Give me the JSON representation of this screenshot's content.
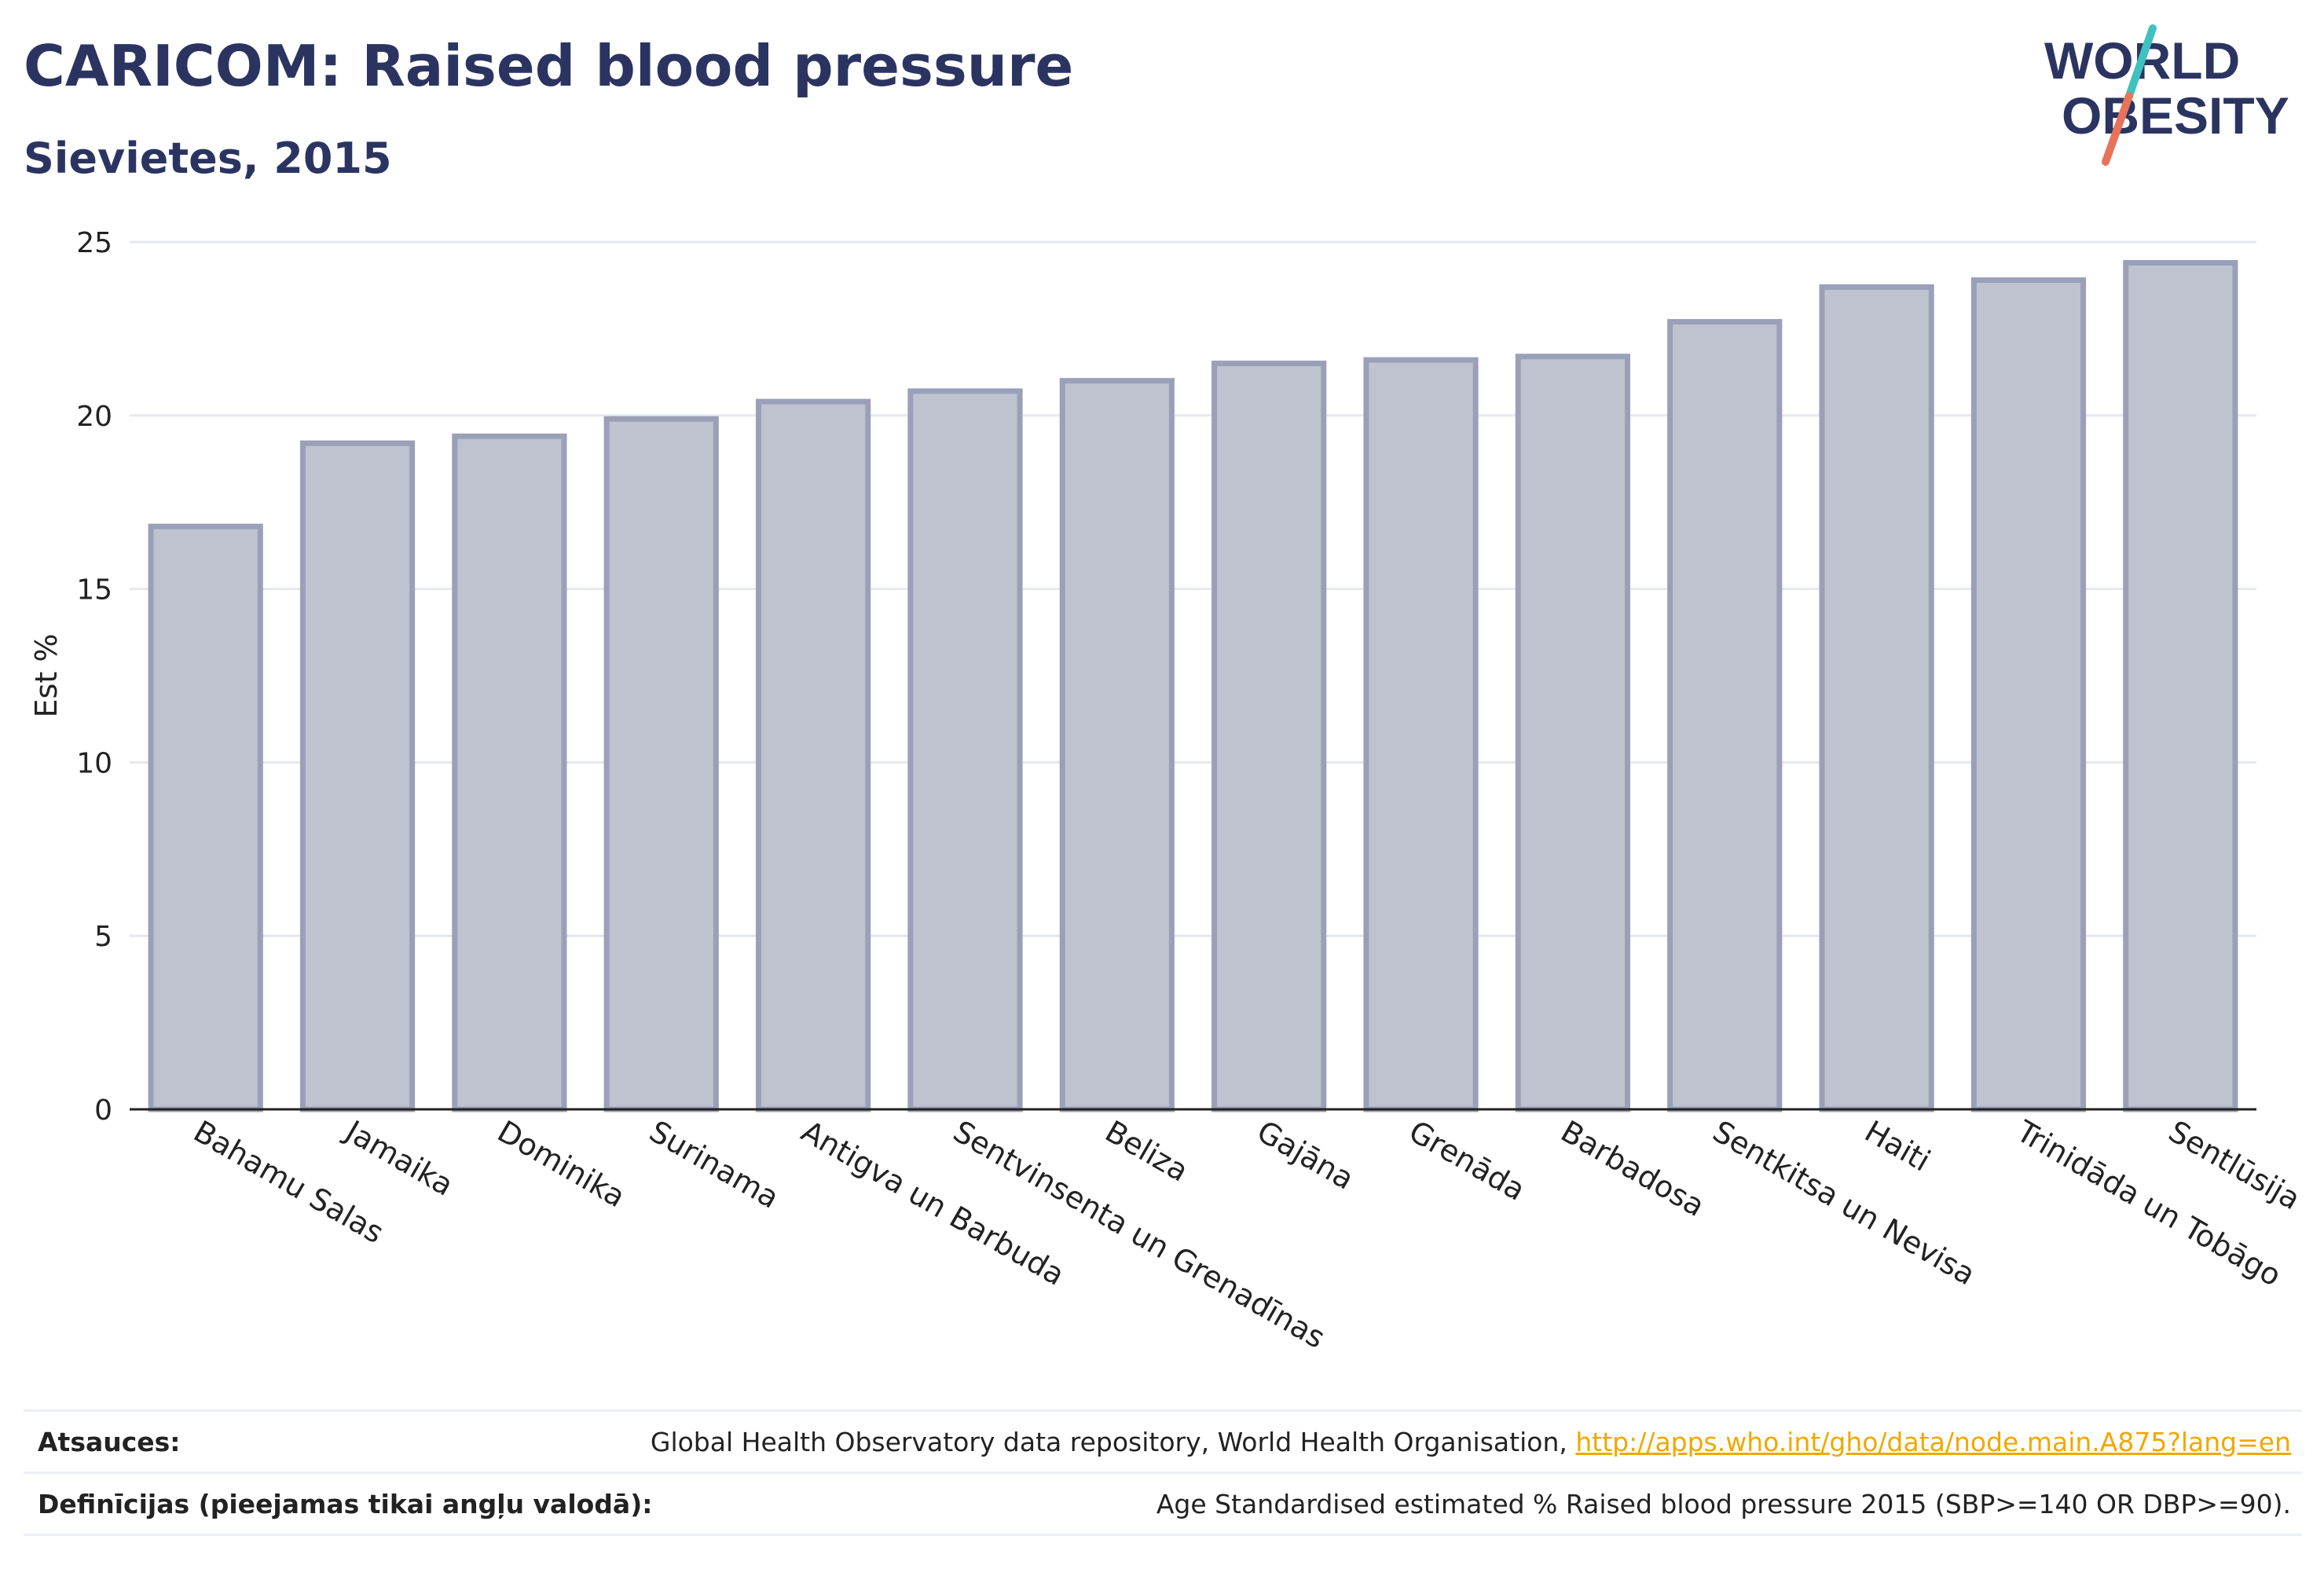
{
  "title": "CARICOM: Raised blood pressure",
  "subtitle": "Sievietes, 2015",
  "logo": {
    "line1": "WORLD",
    "line2": "OBESITY",
    "accent_colors": [
      "#3fc1c0",
      "#e8735a"
    ],
    "text_color": "#2b3461"
  },
  "colors": {
    "bar_fill": "#bfc3d0",
    "bar_stroke": "#9aa0b8",
    "gridline": "#e6e8ee",
    "axis": "#222222",
    "link": "#f0a800"
  },
  "chart_data": {
    "type": "bar",
    "categories": [
      "Bahamu Salas",
      "Jamaika",
      "Dominika",
      "Surinama",
      "Antigva un Barbuda",
      "Sentvinsenta un Grenadīnas",
      "Beliza",
      "Gajāna",
      "Grenāda",
      "Barbadosa",
      "Sentkitsa un Nevisa",
      "Haiti",
      "Trinidāda un Tobāgo",
      "Sentlūsija"
    ],
    "values": [
      16.8,
      19.2,
      19.4,
      19.9,
      20.4,
      20.7,
      21.0,
      21.5,
      21.6,
      21.7,
      22.7,
      23.7,
      23.9,
      24.4
    ],
    "ylabel": "Est %",
    "xlabel": "",
    "ylim": [
      0,
      25
    ],
    "yticks": [
      0,
      5,
      10,
      15,
      20,
      25
    ],
    "grid": true
  },
  "footer": {
    "sources_label": "Atsauces:",
    "sources_text": "Global Health Observatory data repository, World Health Organisation, ",
    "sources_link": "http://apps.who.int/gho/data/node.main.A875?lang=en",
    "definitions_label": "Definīcijas (pieejamas tikai angļu valodā):",
    "definitions_text": "Age Standardised estimated % Raised blood pressure 2015 (SBP>=140 OR DBP>=90)."
  }
}
